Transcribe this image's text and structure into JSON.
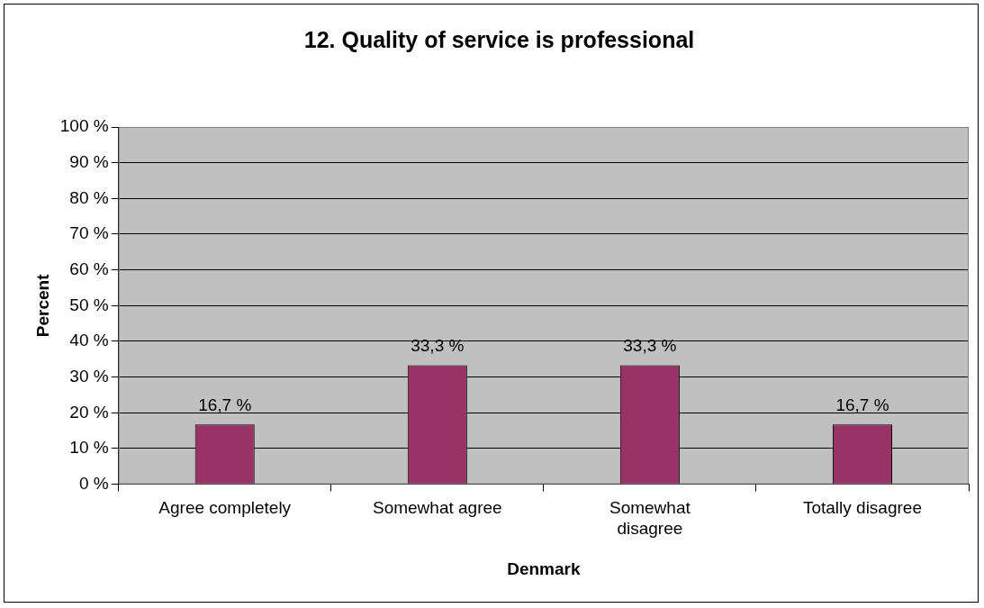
{
  "chart_data": {
    "type": "bar",
    "title": "12. Quality of service is professional",
    "xlabel": "Denmark",
    "ylabel": "Percent",
    "categories": [
      "Agree completely",
      "Somewhat agree",
      "Somewhat\ndisagree",
      "Totally disagree"
    ],
    "values": [
      16.7,
      33.3,
      33.3,
      16.7
    ],
    "color": "#993366",
    "value_labels": [
      "16,7 %",
      "33,3 %",
      "33,3 %",
      "16,7 %"
    ],
    "ylim": [
      0,
      100
    ],
    "yticks": [
      {
        "value": 0,
        "label": "0 %"
      },
      {
        "value": 10,
        "label": "10 %"
      },
      {
        "value": 20,
        "label": "20 %"
      },
      {
        "value": 30,
        "label": "30 %"
      },
      {
        "value": 40,
        "label": "40 %"
      },
      {
        "value": 50,
        "label": "50 %"
      },
      {
        "value": 60,
        "label": "60 %"
      },
      {
        "value": 70,
        "label": "70 %"
      },
      {
        "value": 80,
        "label": "80 %"
      },
      {
        "value": 90,
        "label": "90 %"
      },
      {
        "value": 100,
        "label": "100 %"
      }
    ],
    "grid": "y",
    "legend": false
  }
}
